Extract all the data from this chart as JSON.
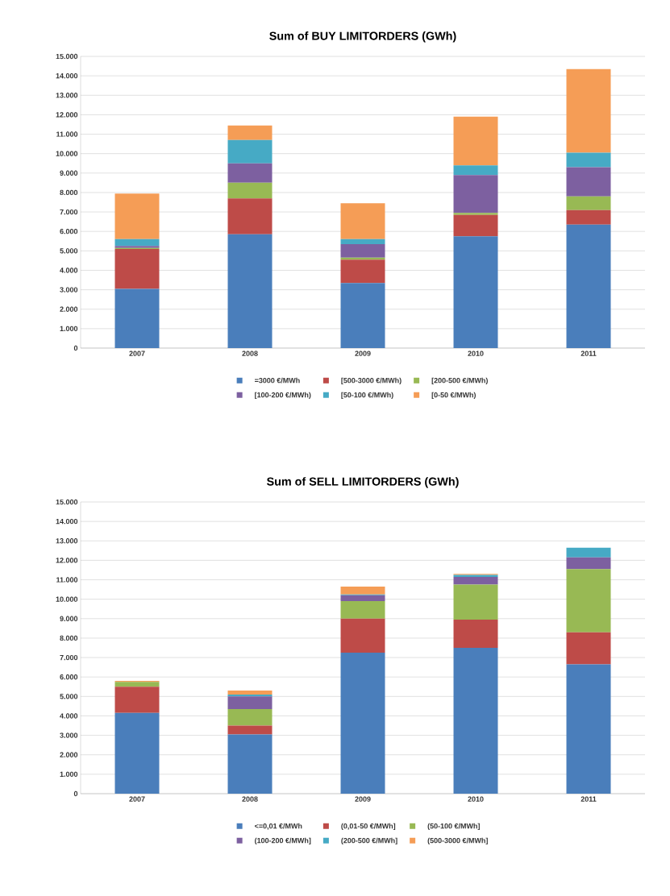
{
  "chart_data": [
    {
      "type": "bar",
      "title": "Sum of BUY LIMITORDERS (GWh)",
      "categories": [
        "2007",
        "2008",
        "2009",
        "2010",
        "2011"
      ],
      "stacked": true,
      "grid": "y",
      "legend": "bottom",
      "ylim": [
        0,
        15000
      ],
      "yticks": [
        0,
        {
          "value": 1000,
          "label": "1.000"
        },
        {
          "value": 2000,
          "label": "2.000"
        },
        {
          "value": 3000,
          "label": "3.000"
        },
        {
          "value": 4000,
          "label": "4.000"
        },
        {
          "value": 5000,
          "label": "5.000"
        },
        {
          "value": 6000,
          "label": "6.000"
        },
        {
          "value": 7000,
          "label": "7.000"
        },
        {
          "value": 8000,
          "label": "8.000"
        },
        {
          "value": 9000,
          "label": "9.000"
        },
        {
          "value": 10000,
          "label": "10.000"
        },
        {
          "value": 11000,
          "label": "11.000"
        },
        {
          "value": 12000,
          "label": "12.000"
        },
        {
          "value": 13000,
          "label": "13.000"
        },
        {
          "value": 14000,
          "label": "14.000"
        },
        {
          "value": 15000,
          "label": "15.000"
        }
      ],
      "series": [
        {
          "name": "=3000 €/MWh",
          "color": "#4a7ebb",
          "values": [
            3050,
            5850,
            3350,
            5750,
            6350
          ]
        },
        {
          "name": "[500-3000 €/MWh)",
          "color": "#be4b48",
          "values": [
            2050,
            1850,
            1200,
            1100,
            750
          ]
        },
        {
          "name": "[200-500 €/MWh)",
          "color": "#98b954",
          "values": [
            50,
            800,
            100,
            100,
            700
          ]
        },
        {
          "name": "[100-200 €/MWh)",
          "color": "#7d60a0",
          "values": [
            100,
            1000,
            700,
            1950,
            1500
          ]
        },
        {
          "name": "[50-100 €/MWh)",
          "color": "#46aac5",
          "values": [
            350,
            1200,
            250,
            500,
            750
          ]
        },
        {
          "name": "[0-50 €/MWh)",
          "color": "#f59d56",
          "values": [
            2350,
            750,
            1850,
            2500,
            4300
          ]
        }
      ]
    },
    {
      "type": "bar",
      "title": "Sum of SELL LIMITORDERS (GWh)",
      "categories": [
        "2007",
        "2008",
        "2009",
        "2010",
        "2011"
      ],
      "stacked": true,
      "grid": "y",
      "legend": "bottom",
      "ylim": [
        0,
        15000
      ],
      "yticks": [
        0,
        {
          "value": 1000,
          "label": "1.000"
        },
        {
          "value": 2000,
          "label": "2.000"
        },
        {
          "value": 3000,
          "label": "3.000"
        },
        {
          "value": 4000,
          "label": "4.000"
        },
        {
          "value": 5000,
          "label": "5.000"
        },
        {
          "value": 6000,
          "label": "6.000"
        },
        {
          "value": 7000,
          "label": "7.000"
        },
        {
          "value": 8000,
          "label": "8.000"
        },
        {
          "value": 9000,
          "label": "9.000"
        },
        {
          "value": 10000,
          "label": "10.000"
        },
        {
          "value": 11000,
          "label": "11.000"
        },
        {
          "value": 12000,
          "label": "12.000"
        },
        {
          "value": 13000,
          "label": "13.000"
        },
        {
          "value": 14000,
          "label": "14.000"
        },
        {
          "value": 15000,
          "label": "15.000"
        }
      ],
      "series": [
        {
          "name": "<=0,01 €/MWh",
          "color": "#4a7ebb",
          "values": [
            4150,
            3050,
            7250,
            7500,
            6650
          ]
        },
        {
          "name": "(0,01-50 €/MWh]",
          "color": "#be4b48",
          "values": [
            1350,
            450,
            1750,
            1450,
            1650
          ]
        },
        {
          "name": "(50-100 €/MWh]",
          "color": "#98b954",
          "values": [
            250,
            850,
            900,
            1800,
            3250
          ]
        },
        {
          "name": "(100-200 €/MWh]",
          "color": "#7d60a0",
          "values": [
            0,
            650,
            300,
            400,
            600
          ]
        },
        {
          "name": "(200-500 €/MWh]",
          "color": "#46aac5",
          "values": [
            0,
            100,
            50,
            100,
            500
          ]
        },
        {
          "name": "(500-3000 €/MWh]",
          "color": "#f59d56",
          "values": [
            50,
            200,
            400,
            50,
            0
          ]
        }
      ]
    }
  ]
}
